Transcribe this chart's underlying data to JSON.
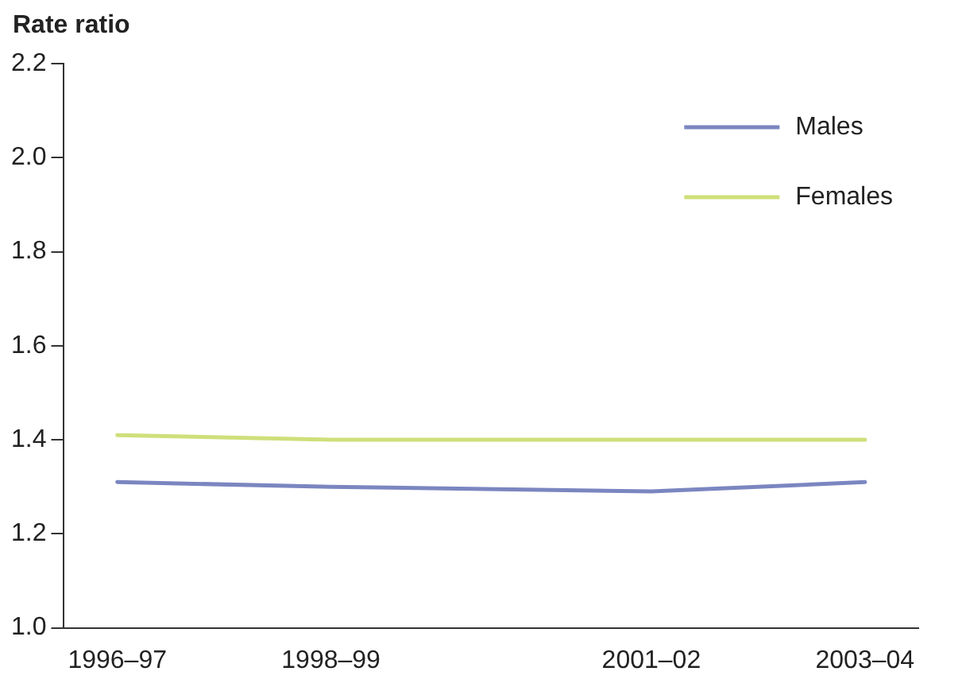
{
  "chart_data": {
    "type": "line",
    "ylabel": "Rate ratio",
    "categories": [
      "1996–97",
      null,
      "1998–99",
      null,
      null,
      "2001–02",
      null,
      "2003–04"
    ],
    "series": [
      {
        "name": "Males",
        "color": "#7b86c0",
        "values": [
          1.31,
          null,
          1.3,
          null,
          null,
          1.29,
          null,
          1.31
        ]
      },
      {
        "name": "Females",
        "color": "#cfdf7a",
        "values": [
          1.41,
          null,
          1.4,
          null,
          null,
          1.4,
          null,
          1.4
        ]
      }
    ],
    "ylim": [
      1.0,
      2.2
    ],
    "yticks": [
      {
        "value": 1.0,
        "label": "1.0"
      },
      1.2,
      1.4,
      1.6,
      1.8,
      {
        "value": 2.0,
        "label": "2.0"
      },
      2.2
    ],
    "grid": false,
    "legend": "top right",
    "marker": "none",
    "line_style": "solid"
  }
}
